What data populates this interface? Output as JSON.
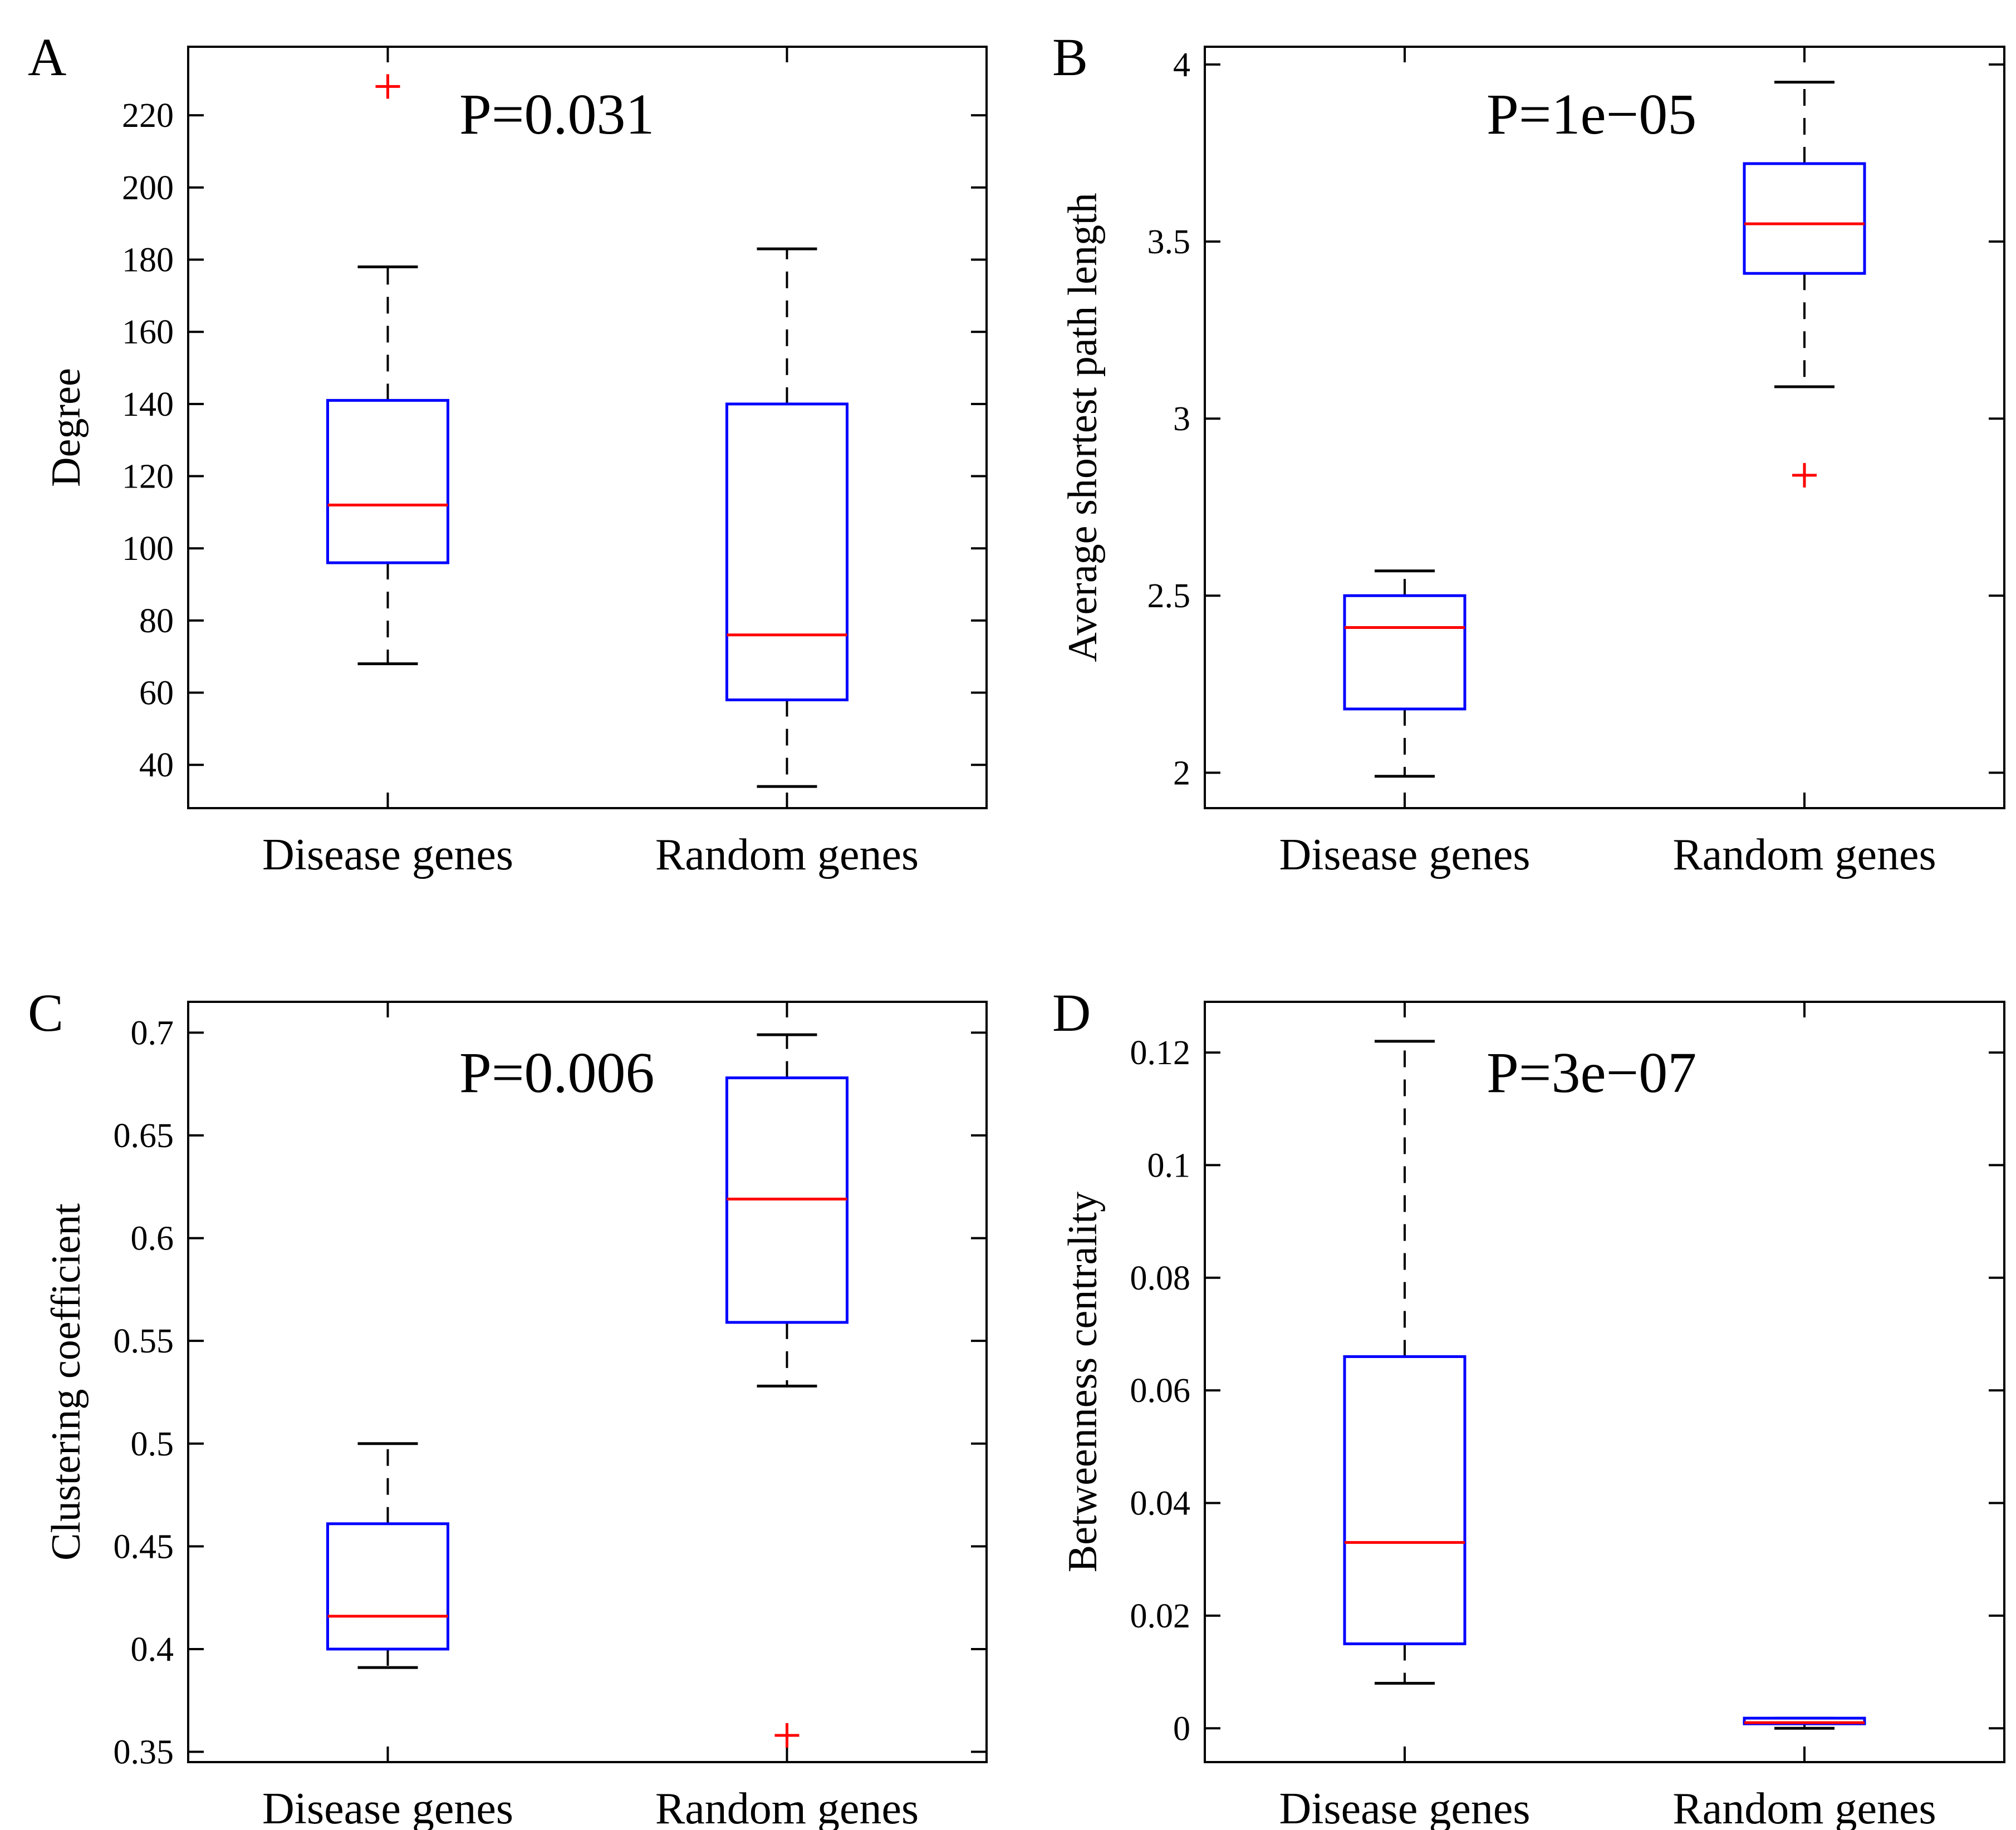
{
  "colors": {
    "axes": "#000000",
    "box": "#0000ff",
    "median": "#ff0000",
    "whisker": "#000000",
    "outlier": "#ff0000"
  },
  "chart_data": [
    {
      "type": "box",
      "panel": "A",
      "annotation": "P=0.031",
      "ylabel": "Degree",
      "categories": [
        "Disease genes",
        "Random genes"
      ],
      "ylim": [
        28,
        239
      ],
      "yticks": [
        40,
        60,
        80,
        100,
        120,
        140,
        160,
        180,
        200,
        220
      ],
      "ytick_labels": [
        "40",
        "60",
        "80",
        "100",
        "120",
        "140",
        "160",
        "180",
        "200",
        "220"
      ],
      "boxes": [
        {
          "whislo": 68,
          "q1": 96,
          "med": 112,
          "q3": 141,
          "whishi": 178,
          "fliers": [
            228
          ]
        },
        {
          "whislo": 34,
          "q1": 58,
          "med": 76,
          "q3": 140,
          "whishi": 183,
          "fliers": []
        }
      ]
    },
    {
      "type": "box",
      "panel": "B",
      "annotation": "P=1e−05",
      "ylabel": "Average shortest path length",
      "categories": [
        "Disease genes",
        "Random genes"
      ],
      "ylim": [
        1.9,
        4.05
      ],
      "yticks": [
        2,
        2.5,
        3,
        3.5,
        4
      ],
      "ytick_labels": [
        "2",
        "2.5",
        "3",
        "3.5",
        "4"
      ],
      "boxes": [
        {
          "whislo": 1.99,
          "q1": 2.18,
          "med": 2.41,
          "q3": 2.5,
          "whishi": 2.57,
          "fliers": []
        },
        {
          "whislo": 3.09,
          "q1": 3.41,
          "med": 3.55,
          "q3": 3.72,
          "whishi": 3.95,
          "fliers": [
            2.84
          ]
        }
      ]
    },
    {
      "type": "box",
      "panel": "C",
      "annotation": "P=0.006",
      "ylabel": "Clustering coefficient",
      "categories": [
        "Disease genes",
        "Random genes"
      ],
      "ylim": [
        0.345,
        0.715
      ],
      "yticks": [
        0.35,
        0.4,
        0.45,
        0.5,
        0.55,
        0.6,
        0.65,
        0.7
      ],
      "ytick_labels": [
        "0.35",
        "0.4",
        "0.45",
        "0.5",
        "0.55",
        "0.6",
        "0.65",
        "0.7"
      ],
      "boxes": [
        {
          "whislo": 0.391,
          "q1": 0.4,
          "med": 0.416,
          "q3": 0.461,
          "whishi": 0.5,
          "fliers": []
        },
        {
          "whislo": 0.528,
          "q1": 0.559,
          "med": 0.619,
          "q3": 0.678,
          "whishi": 0.699,
          "fliers": [
            0.358
          ]
        }
      ]
    },
    {
      "type": "box",
      "panel": "D",
      "annotation": "P=3e−07",
      "ylabel": "Betweenness centrality",
      "categories": [
        "Disease genes",
        "Random genes"
      ],
      "ylim": [
        -0.006,
        0.129
      ],
      "yticks": [
        0,
        0.02,
        0.04,
        0.06,
        0.08,
        0.1,
        0.12
      ],
      "ytick_labels": [
        "0",
        "0.02",
        "0.04",
        "0.06",
        "0.08",
        "0.1",
        "0.12"
      ],
      "boxes": [
        {
          "whislo": 0.008,
          "q1": 0.015,
          "med": 0.033,
          "q3": 0.066,
          "whishi": 0.122,
          "fliers": []
        },
        {
          "whislo": 0.0,
          "q1": 0.0008,
          "med": 0.001,
          "q3": 0.0018,
          "whishi": 0.0018,
          "fliers": []
        }
      ]
    }
  ]
}
